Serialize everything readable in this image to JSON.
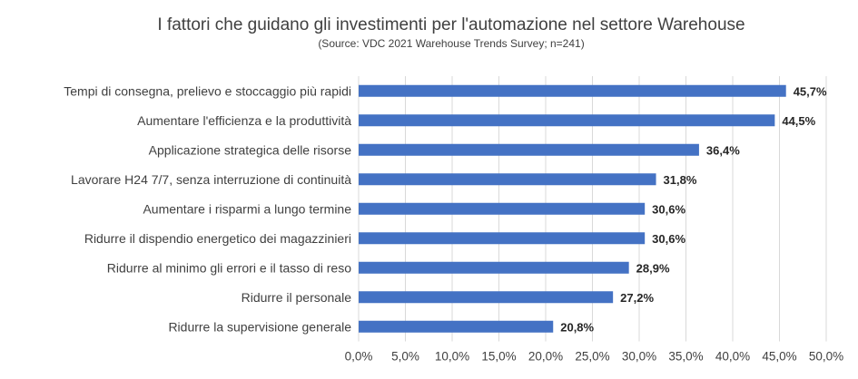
{
  "chart_data": {
    "type": "bar",
    "orientation": "horizontal",
    "title": "I fattori che guidano gli investimenti per l'automazione nel settore Warehouse",
    "subtitle": "(Source: VDC 2021 Warehouse Trends Survey; n=241)",
    "xlabel": "",
    "ylabel": "",
    "categories": [
      "Tempi di consegna, prelievo e stoccaggio più rapidi",
      "Aumentare l'efficienza e la produttività",
      "Applicazione strategica delle risorse",
      "Lavorare H24 7/7, senza interruzione di continuità",
      "Aumentare i risparmi a lungo termine",
      "Ridurre il dispendio energetico dei magazzinieri",
      "Ridurre al minimo gli errori e il tasso di reso",
      "Ridurre il personale",
      "Ridurre la supervisione generale"
    ],
    "values": [
      45.7,
      44.5,
      36.4,
      31.8,
      30.6,
      30.6,
      28.9,
      27.2,
      20.8
    ],
    "value_labels": [
      "45,7%",
      "44,5%",
      "36,4%",
      "31,8%",
      "30,6%",
      "30,6%",
      "28,9%",
      "27,2%",
      "20,8%"
    ],
    "xlim": [
      0,
      50
    ],
    "x_ticks": [
      0,
      5,
      10,
      15,
      20,
      25,
      30,
      35,
      40,
      45,
      50
    ],
    "x_tick_labels": [
      "0,0%",
      "5,0%",
      "10,0%",
      "15,0%",
      "20,0%",
      "25,0%",
      "30,0%",
      "35,0%",
      "40,0%",
      "45,0%",
      "50,0%"
    ],
    "grid": true,
    "bar_color": "#4472C4",
    "grid_color": "#D9D9D9"
  }
}
